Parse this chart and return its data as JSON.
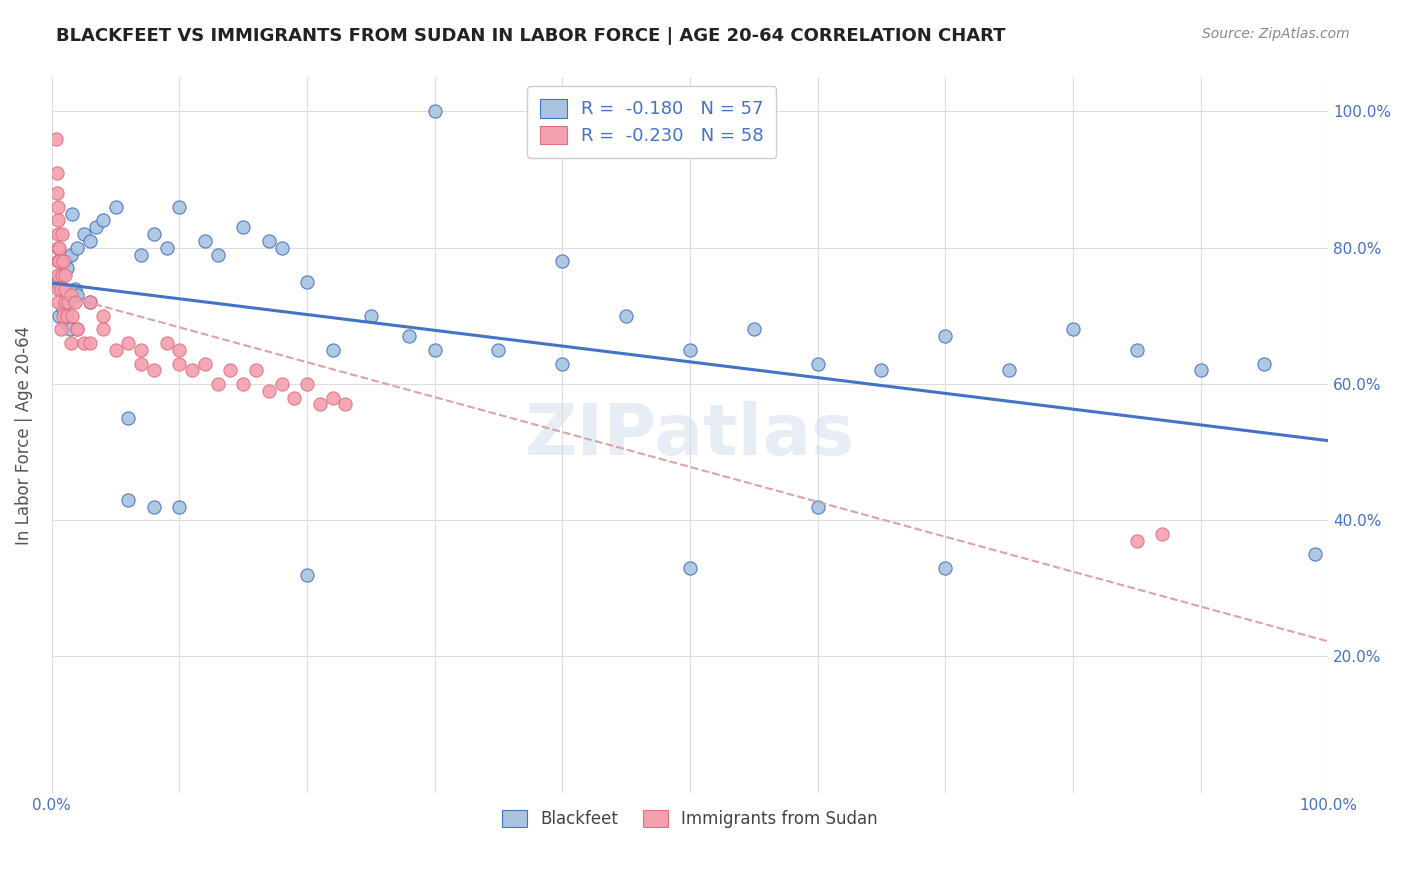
{
  "title": "BLACKFEET VS IMMIGRANTS FROM SUDAN IN LABOR FORCE | AGE 20-64 CORRELATION CHART",
  "source": "Source: ZipAtlas.com",
  "ylabel": "In Labor Force | Age 20-64",
  "legend_labels": [
    "Blackfeet",
    "Immigrants from Sudan"
  ],
  "R_blue": -0.18,
  "N_blue": 57,
  "R_pink": -0.23,
  "N_pink": 58,
  "color_blue": "#a8c4e0",
  "color_pink": "#f4a0b0",
  "color_line_blue": "#4472c4",
  "color_line_pink": "#e07080",
  "color_trend_blue": "#4472c4",
  "color_trend_pink": "#e0a0a8",
  "watermark": "ZIPatlas",
  "blue_scatter_x": [
    0.005,
    0.008,
    0.01,
    0.012,
    0.015,
    0.018,
    0.02,
    0.025,
    0.03,
    0.035,
    0.04,
    0.05,
    0.06,
    0.07,
    0.08,
    0.09,
    0.1,
    0.12,
    0.13,
    0.15,
    0.17,
    0.18,
    0.2,
    0.22,
    0.25,
    0.28,
    0.3,
    0.35,
    0.4,
    0.45,
    0.5,
    0.55,
    0.6,
    0.65,
    0.7,
    0.75,
    0.8,
    0.85,
    0.9,
    0.95,
    0.99,
    0.006,
    0.009,
    0.011,
    0.014,
    0.016,
    0.02,
    0.03,
    0.06,
    0.08,
    0.1,
    0.2,
    0.3,
    0.4,
    0.5,
    0.6,
    0.7
  ],
  "blue_scatter_y": [
    0.75,
    0.76,
    0.78,
    0.77,
    0.79,
    0.74,
    0.8,
    0.82,
    0.81,
    0.83,
    0.84,
    0.86,
    0.43,
    0.79,
    0.82,
    0.8,
    0.86,
    0.81,
    0.79,
    0.83,
    0.81,
    0.8,
    0.75,
    0.65,
    0.7,
    0.67,
    0.65,
    0.65,
    0.78,
    0.7,
    0.65,
    0.68,
    0.63,
    0.62,
    0.67,
    0.62,
    0.68,
    0.65,
    0.62,
    0.63,
    0.35,
    0.7,
    0.71,
    0.69,
    0.68,
    0.85,
    0.73,
    0.72,
    0.55,
    0.42,
    0.42,
    0.32,
    1.0,
    0.63,
    0.33,
    0.42,
    0.33
  ],
  "pink_scatter_x": [
    0.003,
    0.004,
    0.004,
    0.005,
    0.005,
    0.005,
    0.005,
    0.005,
    0.005,
    0.005,
    0.005,
    0.006,
    0.006,
    0.007,
    0.007,
    0.008,
    0.008,
    0.009,
    0.009,
    0.01,
    0.01,
    0.01,
    0.012,
    0.013,
    0.015,
    0.015,
    0.016,
    0.018,
    0.02,
    0.02,
    0.025,
    0.03,
    0.03,
    0.04,
    0.04,
    0.05,
    0.06,
    0.07,
    0.07,
    0.08,
    0.09,
    0.1,
    0.1,
    0.11,
    0.12,
    0.13,
    0.14,
    0.15,
    0.16,
    0.17,
    0.18,
    0.19,
    0.2,
    0.21,
    0.22,
    0.23,
    0.85,
    0.87
  ],
  "pink_scatter_y": [
    0.96,
    0.91,
    0.88,
    0.86,
    0.84,
    0.82,
    0.8,
    0.78,
    0.76,
    0.74,
    0.72,
    0.8,
    0.78,
    0.74,
    0.68,
    0.82,
    0.76,
    0.7,
    0.78,
    0.72,
    0.76,
    0.74,
    0.7,
    0.72,
    0.66,
    0.73,
    0.7,
    0.72,
    0.68,
    0.68,
    0.66,
    0.72,
    0.66,
    0.7,
    0.68,
    0.65,
    0.66,
    0.63,
    0.65,
    0.62,
    0.66,
    0.63,
    0.65,
    0.62,
    0.63,
    0.6,
    0.62,
    0.6,
    0.62,
    0.59,
    0.6,
    0.58,
    0.6,
    0.57,
    0.58,
    0.57,
    0.37,
    0.38
  ]
}
